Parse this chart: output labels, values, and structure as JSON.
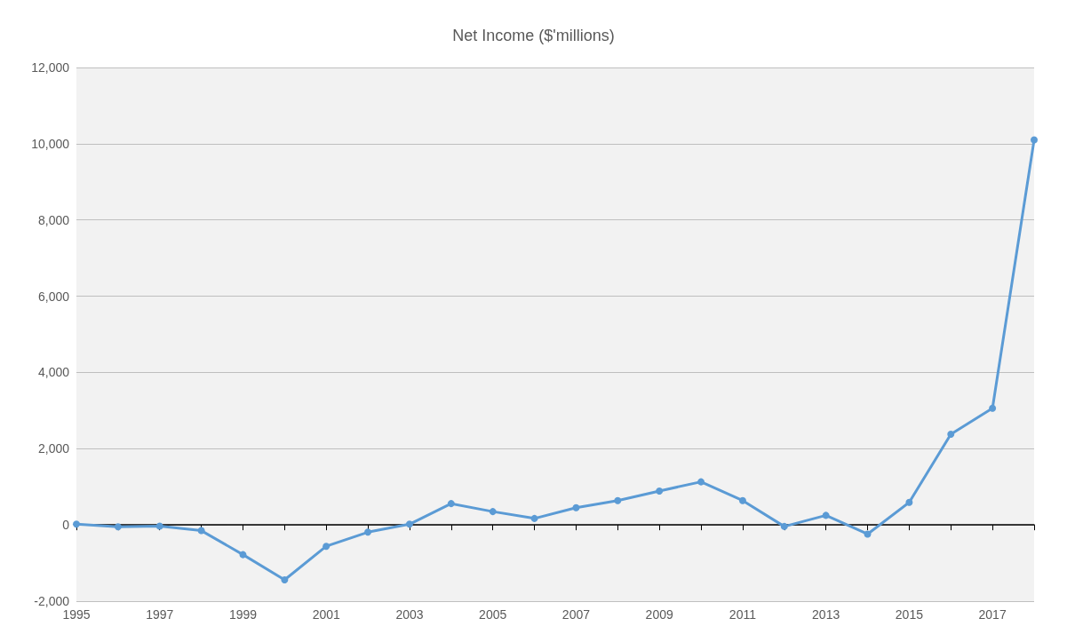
{
  "chart_data": {
    "type": "line",
    "title": "Net Income ($'millions)",
    "x": [
      1995,
      1996,
      1997,
      1998,
      1999,
      2000,
      2001,
      2002,
      2003,
      2004,
      2005,
      2006,
      2007,
      2008,
      2009,
      2010,
      2011,
      2012,
      2013,
      2014,
      2015,
      2016,
      2017,
      2018
    ],
    "series": [
      {
        "color": "#5b9bd5",
        "values": [
          20,
          -50,
          -30,
          -150,
          -780,
          -1440,
          -560,
          -190,
          20,
          560,
          350,
          170,
          450,
          640,
          890,
          1130,
          640,
          -40,
          250,
          -240,
          590,
          2380,
          3060,
          10100
        ]
      }
    ],
    "xlim": [
      1995,
      2018
    ],
    "xticks": [
      1995,
      1997,
      1999,
      2001,
      2003,
      2005,
      2007,
      2009,
      2011,
      2013,
      2015,
      2017
    ],
    "ylim": [
      -2000,
      12000
    ],
    "yticks": [
      {
        "value": -2000,
        "label": "-2,000"
      },
      0,
      {
        "value": 2000,
        "label": "2,000"
      },
      {
        "value": 4000,
        "label": "4,000"
      },
      {
        "value": 6000,
        "label": "6,000"
      },
      {
        "value": 8000,
        "label": "8,000"
      },
      {
        "value": 10000,
        "label": "10,000"
      },
      {
        "value": 12000,
        "label": "12,000"
      }
    ],
    "grid": "y",
    "marker": "circle",
    "line_style": "solid"
  }
}
